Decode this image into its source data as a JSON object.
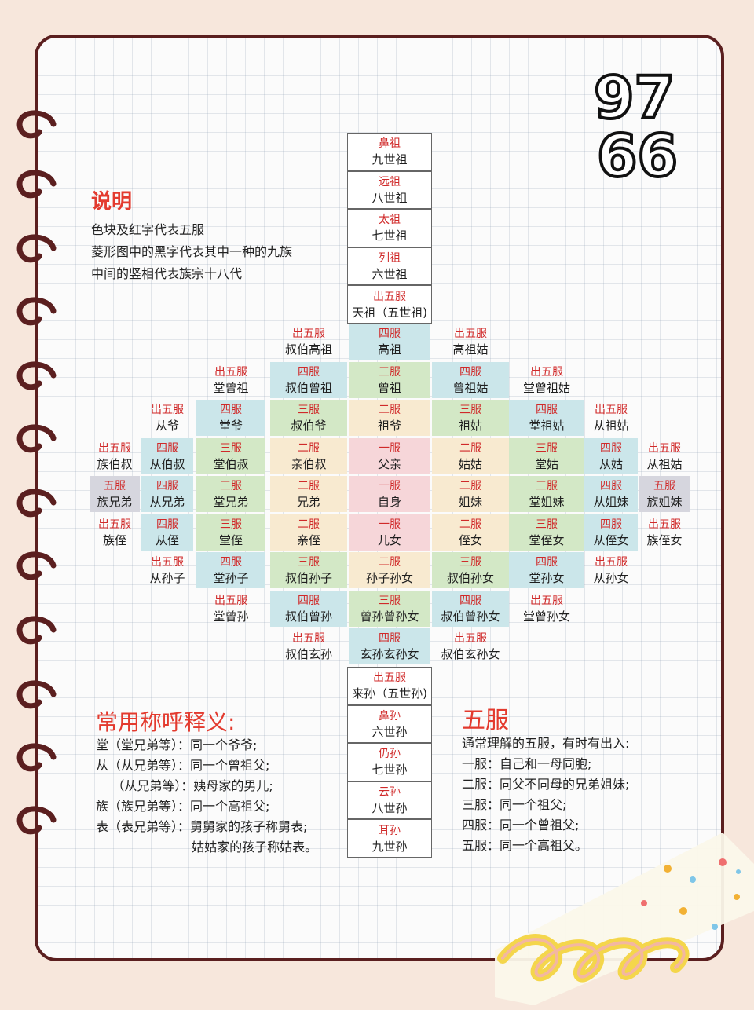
{
  "logo": {
    "top_text": "97",
    "bottom_text": "66"
  },
  "legend": {
    "heading": "说明",
    "lines": [
      "色块及红字代表五服",
      "菱形图中的黑字代表其中一种的九族",
      "中间的竖相代表族宗十八代"
    ]
  },
  "tower_top": [
    {
      "tag": "鼻祖",
      "name": "九世祖"
    },
    {
      "tag": "远祖",
      "name": "八世祖"
    },
    {
      "tag": "太祖",
      "name": "七世祖"
    },
    {
      "tag": "列祖",
      "name": "六世祖"
    },
    {
      "tag": "出五服",
      "name": "天祖（五世祖)"
    }
  ],
  "tower_bottom": [
    {
      "tag": "出五服",
      "name": "来孙（五世孙)"
    },
    {
      "tag": "鼻孙",
      "name": "六世孙"
    },
    {
      "tag": "仍孙",
      "name": "七世孙"
    },
    {
      "tag": "云孙",
      "name": "八世孙"
    },
    {
      "tag": "耳孙",
      "name": "九世孙"
    }
  ],
  "grid": {
    "rows": [
      [
        {
          "c": 3,
          "tag": "出五服",
          "name": "叔伯高祖"
        },
        {
          "c": 4,
          "tag": "四服",
          "name": "高祖",
          "color": "#cbe6ea"
        },
        {
          "c": 5,
          "tag": "出五服",
          "name": "高祖姑"
        }
      ],
      [
        {
          "c": 2,
          "tag": "出五服",
          "name": "堂曾祖"
        },
        {
          "c": 3,
          "tag": "四服",
          "name": "叔伯曾祖",
          "color": "#cbe6ea"
        },
        {
          "c": 4,
          "tag": "三服",
          "name": "曾祖",
          "color": "#d3e8c6"
        },
        {
          "c": 5,
          "tag": "四服",
          "name": "曾祖姑",
          "color": "#cbe6ea"
        },
        {
          "c": 6,
          "tag": "出五服",
          "name": "堂曾祖姑"
        }
      ],
      [
        {
          "c": 1,
          "tag": "出五服",
          "name": "从爷"
        },
        {
          "c": 2,
          "tag": "四服",
          "name": "堂爷",
          "color": "#cbe6ea"
        },
        {
          "c": 3,
          "tag": "三服",
          "name": "叔伯爷",
          "color": "#d3e8c6"
        },
        {
          "c": 4,
          "tag": "二服",
          "name": "祖爷",
          "color": "#f8ead0"
        },
        {
          "c": 5,
          "tag": "三服",
          "name": "祖姑",
          "color": "#d3e8c6"
        },
        {
          "c": 6,
          "tag": "四服",
          "name": "堂祖姑",
          "color": "#cbe6ea"
        },
        {
          "c": 7,
          "tag": "出五服",
          "name": "从祖姑"
        }
      ],
      [
        {
          "c": 0,
          "tag": "出五服",
          "name": "族伯叔"
        },
        {
          "c": 1,
          "tag": "四服",
          "name": "从伯叔",
          "color": "#cbe6ea"
        },
        {
          "c": 2,
          "tag": "三服",
          "name": "堂伯叔",
          "color": "#d3e8c6"
        },
        {
          "c": 3,
          "tag": "二服",
          "name": "亲伯叔",
          "color": "#f8ead0"
        },
        {
          "c": 4,
          "tag": "一服",
          "name": "父亲",
          "color": "#f6d6d9"
        },
        {
          "c": 5,
          "tag": "二服",
          "name": "姑姑",
          "color": "#f8ead0"
        },
        {
          "c": 6,
          "tag": "三服",
          "name": "堂姑",
          "color": "#d3e8c6"
        },
        {
          "c": 7,
          "tag": "四服",
          "name": "从姑",
          "color": "#cbe6ea"
        },
        {
          "c": 8,
          "tag": "出五服",
          "name": "从祖姑"
        }
      ],
      [
        {
          "c": 0,
          "tag": "五服",
          "name": "族兄弟",
          "color": "#d6d6de"
        },
        {
          "c": 1,
          "tag": "四服",
          "name": "从兄弟",
          "color": "#cbe6ea"
        },
        {
          "c": 2,
          "tag": "三服",
          "name": "堂兄弟",
          "color": "#d3e8c6"
        },
        {
          "c": 3,
          "tag": "二服",
          "name": "兄弟",
          "color": "#f8ead0"
        },
        {
          "c": 4,
          "tag": "一服",
          "name": "自身",
          "color": "#f6d6d9"
        },
        {
          "c": 5,
          "tag": "二服",
          "name": "姐妹",
          "color": "#f8ead0"
        },
        {
          "c": 6,
          "tag": "三服",
          "name": "堂姐妹",
          "color": "#d3e8c6"
        },
        {
          "c": 7,
          "tag": "四服",
          "name": "从姐妹",
          "color": "#cbe6ea"
        },
        {
          "c": 8,
          "tag": "五服",
          "name": "族姐妹",
          "color": "#d6d6de"
        }
      ],
      [
        {
          "c": 0,
          "tag": "出五服",
          "name": "族侄"
        },
        {
          "c": 1,
          "tag": "四服",
          "name": "从侄",
          "color": "#cbe6ea"
        },
        {
          "c": 2,
          "tag": "三服",
          "name": "堂侄",
          "color": "#d3e8c6"
        },
        {
          "c": 3,
          "tag": "二服",
          "name": "亲侄",
          "color": "#f8ead0"
        },
        {
          "c": 4,
          "tag": "一服",
          "name": "儿女",
          "color": "#f6d6d9"
        },
        {
          "c": 5,
          "tag": "二服",
          "name": "侄女",
          "color": "#f8ead0"
        },
        {
          "c": 6,
          "tag": "三服",
          "name": "堂侄女",
          "color": "#d3e8c6"
        },
        {
          "c": 7,
          "tag": "四服",
          "name": "从侄女",
          "color": "#cbe6ea"
        },
        {
          "c": 8,
          "tag": "出五服",
          "name": "族侄女"
        }
      ],
      [
        {
          "c": 1,
          "tag": "出五服",
          "name": "从孙子"
        },
        {
          "c": 2,
          "tag": "四服",
          "name": "堂孙子",
          "color": "#cbe6ea"
        },
        {
          "c": 3,
          "tag": "三服",
          "name": "叔伯孙子",
          "color": "#d3e8c6"
        },
        {
          "c": 4,
          "tag": "二服",
          "name": "孙子孙女",
          "color": "#f8ead0"
        },
        {
          "c": 5,
          "tag": "三服",
          "name": "叔伯孙女",
          "color": "#d3e8c6"
        },
        {
          "c": 6,
          "tag": "四服",
          "name": "堂孙女",
          "color": "#cbe6ea"
        },
        {
          "c": 7,
          "tag": "出五服",
          "name": "从孙女"
        }
      ],
      [
        {
          "c": 2,
          "tag": "出五服",
          "name": "堂曾孙"
        },
        {
          "c": 3,
          "tag": "四服",
          "name": "叔伯曾孙",
          "color": "#cbe6ea"
        },
        {
          "c": 4,
          "tag": "三服",
          "name": "曾孙曾孙女",
          "color": "#d3e8c6"
        },
        {
          "c": 5,
          "tag": "四服",
          "name": "叔伯曾孙女",
          "color": "#cbe6ea"
        },
        {
          "c": 6,
          "tag": "出五服",
          "name": "堂曾孙女"
        }
      ],
      [
        {
          "c": 3,
          "tag": "出五服",
          "name": "叔伯玄孙"
        },
        {
          "c": 4,
          "tag": "四服",
          "name": "玄孙玄孙女",
          "color": "#cbe6ea"
        },
        {
          "c": 5,
          "tag": "出五服",
          "name": "叔伯玄孙女"
        }
      ]
    ]
  },
  "terms": {
    "heading": "常用称呼释义:",
    "lines": [
      "堂（堂兄弟等）：同一个爷爷;",
      "从（从兄弟等）：同一个曾祖父;",
      "    （从兄弟等）：姨母家的男儿;",
      "族（族兄弟等）：同一个高祖父;",
      "表（表兄弟等）：舅舅家的孩子称舅表;",
      "                        姑姑家的孩子称姑表。"
    ]
  },
  "wufu": {
    "heading": "五服",
    "lines": [
      "通常理解的五服，有时有出入:",
      "一服：自己和一母同胞;",
      "二服：同父不同母的兄弟姐妹;",
      "三服：同一个祖父;",
      "四服：同一个曾祖父;",
      "五服：同一个高祖父。"
    ]
  }
}
